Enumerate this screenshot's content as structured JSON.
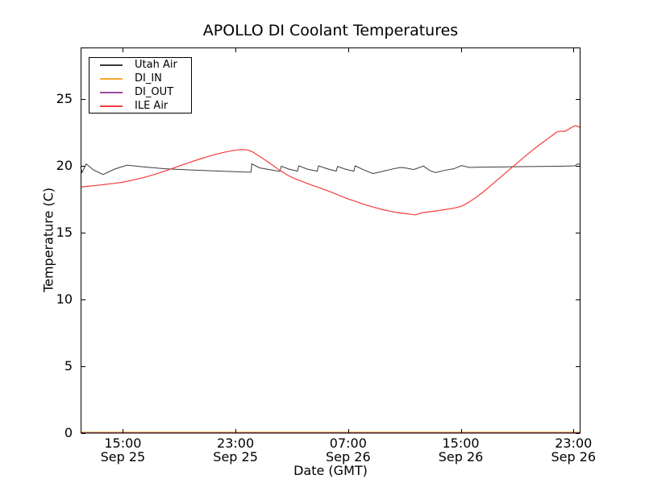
{
  "title": "APOLLO DI Coolant Temperatures",
  "xlabel": "Date (GMT)",
  "ylabel": "Temperature (C)",
  "colors": {
    "background": "#ffffff",
    "axis": "#000000",
    "utah_air": "#3a3a3a",
    "di_in": "#ffa733",
    "di_out": "#9b4a9b",
    "ile_air": "#f63b3b"
  },
  "legend": {
    "items": [
      {
        "label": "Utah Air",
        "color": "#3a3a3a"
      },
      {
        "label": "DI_IN",
        "color": "#ffa733"
      },
      {
        "label": "DI_OUT",
        "color": "#9b4a9b"
      },
      {
        "label": "ILE Air",
        "color": "#f63b3b"
      }
    ]
  },
  "axes": {
    "x_ticks": [
      {
        "hour": 3,
        "line1": "15:00",
        "line2": "Sep 25"
      },
      {
        "hour": 11,
        "line1": "23:00",
        "line2": "Sep 25"
      },
      {
        "hour": 19,
        "line1": "07:00",
        "line2": "Sep 26"
      },
      {
        "hour": 27,
        "line1": "15:00",
        "line2": "Sep 26"
      },
      {
        "hour": 35,
        "line1": "23:00",
        "line2": "Sep 26"
      }
    ],
    "y_ticks": [
      0,
      5,
      10,
      15,
      20,
      25
    ]
  },
  "chart_data": {
    "type": "line",
    "title": "APOLLO DI Coolant Temperatures",
    "xlabel": "Date (GMT)",
    "ylabel": "Temperature (C)",
    "x_unit": "hours after Sep 25 12:00 GMT",
    "x_range_hours": [
      0,
      35.5
    ],
    "ylim": [
      0,
      28.9
    ],
    "grid": false,
    "legend_position": "upper left",
    "series": [
      {
        "name": "Utah Air",
        "color": "#3a3a3a",
        "points": [
          [
            0,
            19.9
          ],
          [
            0.1,
            19.5
          ],
          [
            0.4,
            20.15
          ],
          [
            0.9,
            19.7
          ],
          [
            1.6,
            19.35
          ],
          [
            2.4,
            19.75
          ],
          [
            3.3,
            20.05
          ],
          [
            4.5,
            19.92
          ],
          [
            6,
            19.78
          ],
          [
            8,
            19.68
          ],
          [
            10,
            19.6
          ],
          [
            12.1,
            19.52
          ],
          [
            12.16,
            20.15
          ],
          [
            12.7,
            19.85
          ],
          [
            13.4,
            19.72
          ],
          [
            14.15,
            19.58
          ],
          [
            14.25,
            19.97
          ],
          [
            14.8,
            19.75
          ],
          [
            15.4,
            19.6
          ],
          [
            15.5,
            20.0
          ],
          [
            16.1,
            19.75
          ],
          [
            16.8,
            19.6
          ],
          [
            16.9,
            20.0
          ],
          [
            17.5,
            19.78
          ],
          [
            18.15,
            19.6
          ],
          [
            18.25,
            19.95
          ],
          [
            18.8,
            19.75
          ],
          [
            19.4,
            19.6
          ],
          [
            19.5,
            20.0
          ],
          [
            20.1,
            19.7
          ],
          [
            20.75,
            19.42
          ],
          [
            21.5,
            19.6
          ],
          [
            22.3,
            19.8
          ],
          [
            22.75,
            19.88
          ],
          [
            23.2,
            19.82
          ],
          [
            23.65,
            19.72
          ],
          [
            24.35,
            19.98
          ],
          [
            24.8,
            19.65
          ],
          [
            25.2,
            19.5
          ],
          [
            25.8,
            19.65
          ],
          [
            26.5,
            19.78
          ],
          [
            27.05,
            20.02
          ],
          [
            27.6,
            19.88
          ],
          [
            28.5,
            19.9
          ],
          [
            30,
            19.92
          ],
          [
            32,
            19.95
          ],
          [
            34,
            19.97
          ],
          [
            35.1,
            20.0
          ],
          [
            35.3,
            20.15
          ],
          [
            35.5,
            20.1
          ]
        ]
      },
      {
        "name": "DI_IN",
        "color": "#ffa733",
        "points": [
          [
            0,
            0
          ],
          [
            35.5,
            0
          ]
        ]
      },
      {
        "name": "DI_OUT",
        "color": "#9b4a9b",
        "points": [
          [
            0,
            0
          ],
          [
            35.5,
            0
          ]
        ]
      },
      {
        "name": "ILE Air",
        "color": "#f63b3b",
        "points": [
          [
            0,
            18.42
          ],
          [
            0.5,
            18.47
          ],
          [
            1,
            18.52
          ],
          [
            1.5,
            18.58
          ],
          [
            2,
            18.64
          ],
          [
            2.5,
            18.7
          ],
          [
            3,
            18.78
          ],
          [
            3.5,
            18.88
          ],
          [
            4,
            19.0
          ],
          [
            4.5,
            19.13
          ],
          [
            5,
            19.28
          ],
          [
            5.5,
            19.44
          ],
          [
            6,
            19.62
          ],
          [
            6.5,
            19.8
          ],
          [
            7,
            19.99
          ],
          [
            7.5,
            20.17
          ],
          [
            8,
            20.35
          ],
          [
            8.5,
            20.52
          ],
          [
            9,
            20.68
          ],
          [
            9.5,
            20.83
          ],
          [
            10,
            20.97
          ],
          [
            10.5,
            21.08
          ],
          [
            11,
            21.17
          ],
          [
            11.4,
            21.22
          ],
          [
            11.8,
            21.2
          ],
          [
            12.2,
            21.05
          ],
          [
            12.7,
            20.72
          ],
          [
            13.2,
            20.36
          ],
          [
            13.7,
            20.0
          ],
          [
            14.2,
            19.62
          ],
          [
            14.7,
            19.3
          ],
          [
            15.2,
            19.04
          ],
          [
            15.8,
            18.8
          ],
          [
            16.4,
            18.56
          ],
          [
            17,
            18.35
          ],
          [
            17.5,
            18.15
          ],
          [
            18,
            17.95
          ],
          [
            18.5,
            17.73
          ],
          [
            19,
            17.52
          ],
          [
            19.5,
            17.35
          ],
          [
            20,
            17.16
          ],
          [
            20.5,
            17.0
          ],
          [
            21,
            16.85
          ],
          [
            21.5,
            16.71
          ],
          [
            22,
            16.6
          ],
          [
            22.5,
            16.5
          ],
          [
            23,
            16.44
          ],
          [
            23.4,
            16.38
          ],
          [
            23.8,
            16.33
          ],
          [
            24.2,
            16.48
          ],
          [
            24.7,
            16.55
          ],
          [
            25.2,
            16.62
          ],
          [
            25.7,
            16.7
          ],
          [
            26.2,
            16.78
          ],
          [
            26.7,
            16.88
          ],
          [
            27.1,
            17.0
          ],
          [
            27.6,
            17.3
          ],
          [
            28.1,
            17.65
          ],
          [
            28.6,
            18.05
          ],
          [
            29.1,
            18.5
          ],
          [
            29.6,
            18.95
          ],
          [
            30.1,
            19.4
          ],
          [
            30.6,
            19.85
          ],
          [
            31.1,
            20.3
          ],
          [
            31.6,
            20.75
          ],
          [
            32.1,
            21.18
          ],
          [
            32.6,
            21.58
          ],
          [
            33.1,
            21.97
          ],
          [
            33.5,
            22.28
          ],
          [
            33.8,
            22.52
          ],
          [
            34.1,
            22.6
          ],
          [
            34.35,
            22.57
          ],
          [
            34.6,
            22.7
          ],
          [
            34.9,
            22.9
          ],
          [
            35.15,
            23.0
          ],
          [
            35.5,
            22.87
          ]
        ]
      }
    ]
  }
}
